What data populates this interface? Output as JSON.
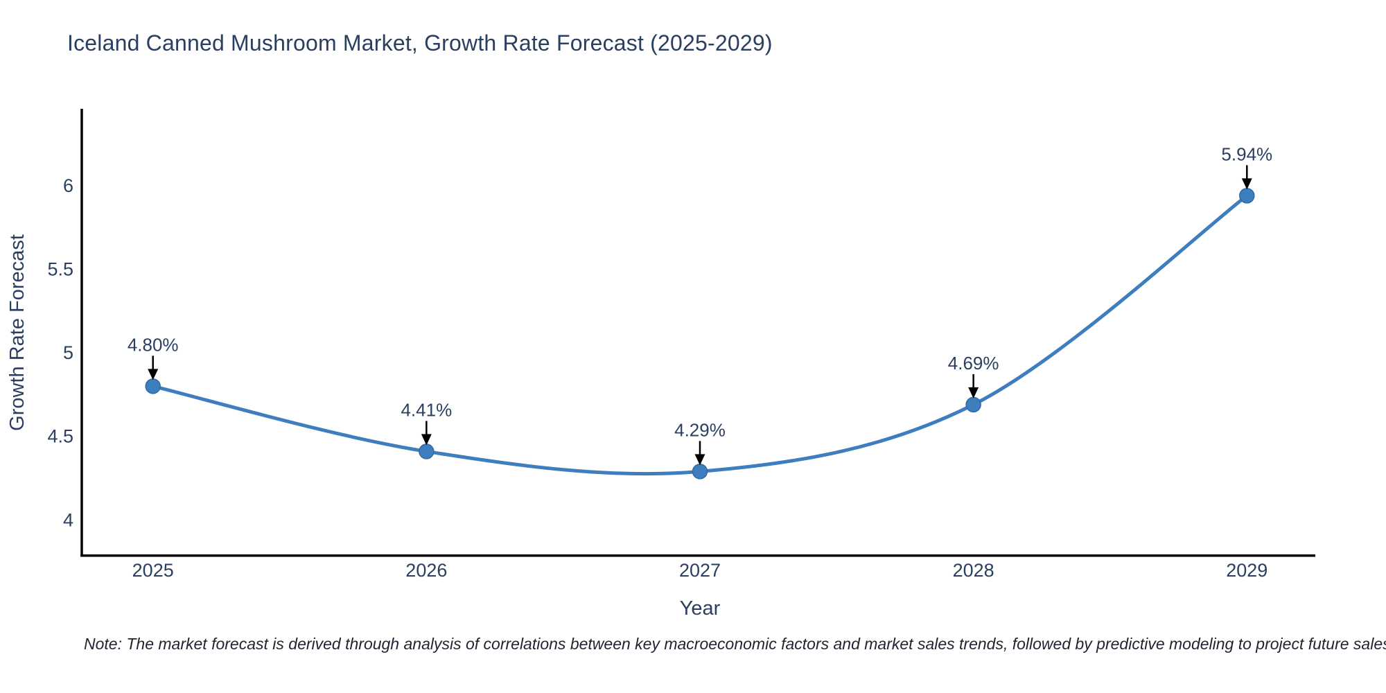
{
  "header": {
    "title": "Iceland Canned Mushroom Market, Growth Rate Forecast (2025-2029)"
  },
  "footer": {
    "note": "Note: The market forecast is derived through analysis of correlations between key macroeconomic factors and market sales trends, followed by predictive modeling to project future sales"
  },
  "chart_data": {
    "type": "line",
    "title": "Iceland Canned Mushroom Market, Growth Rate Forecast (2025-2029)",
    "xlabel": "Year",
    "ylabel": "Growth Rate Forecast",
    "categories": [
      "2025",
      "2026",
      "2027",
      "2028",
      "2029"
    ],
    "values": [
      4.8,
      4.41,
      4.29,
      4.69,
      5.94
    ],
    "point_labels": [
      "4.80%",
      "4.41%",
      "4.29%",
      "4.69%",
      "5.94%"
    ],
    "series": [
      {
        "name": "Growth Rate Forecast",
        "values": [
          4.8,
          4.41,
          4.29,
          4.69,
          5.94
        ]
      }
    ],
    "y_ticks": [
      {
        "label": "4",
        "value": 4.0
      },
      {
        "label": "4.5",
        "value": 4.5
      },
      {
        "label": "5",
        "value": 5.0
      },
      {
        "label": "5.5",
        "value": 5.5
      },
      {
        "label": "6",
        "value": 6.0
      }
    ],
    "ylim": [
      3.78,
      6.46
    ],
    "line_shape": "spline",
    "grid": false,
    "legend": "none",
    "colors": {
      "line": "#3e7ebe",
      "marker": "#3e7ebe",
      "marker_edge": "#2f6ba3",
      "arrow": "#000000",
      "text": "#2a3f5f",
      "axis": "#000000"
    }
  }
}
